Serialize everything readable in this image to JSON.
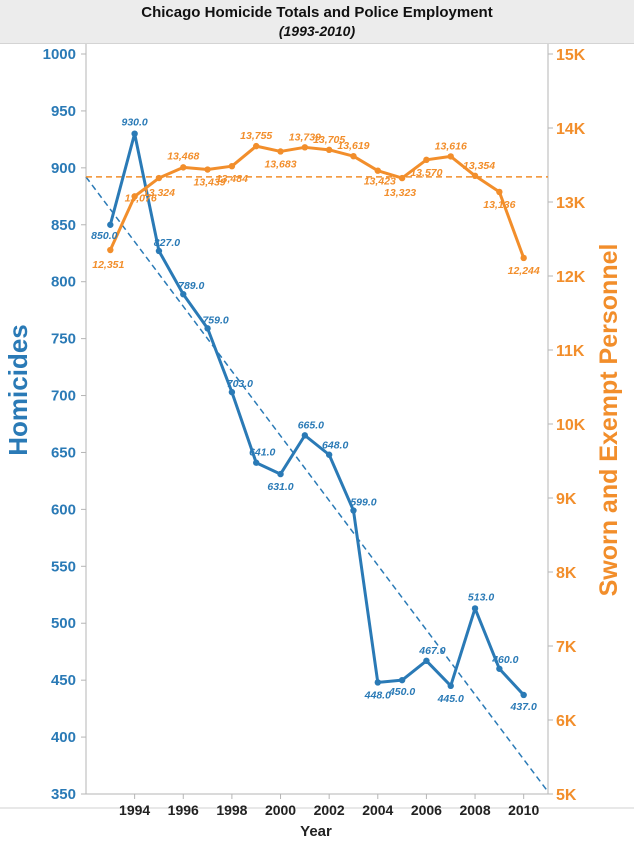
{
  "chart_data": {
    "type": "line",
    "title": "Chicago Homicide Totals and Police Employment",
    "subtitle": "(1993-2010)",
    "xlabel": "Year",
    "ylabel_left": "Homicides",
    "ylabel_right": "Sworn and Exempt Personnel",
    "x": [
      1993,
      1994,
      1995,
      1996,
      1997,
      1998,
      1999,
      2000,
      2001,
      2002,
      2003,
      2004,
      2005,
      2006,
      2007,
      2008,
      2009,
      2010
    ],
    "x_ticks": [
      1994,
      1996,
      1998,
      2000,
      2002,
      2004,
      2006,
      2008,
      2010
    ],
    "ylim_left": [
      350,
      1000
    ],
    "yticks_left": [
      350,
      400,
      450,
      500,
      550,
      600,
      650,
      700,
      750,
      800,
      850,
      900,
      950,
      1000
    ],
    "ylim_right": [
      5000,
      15000
    ],
    "yticks_right": [
      {
        "v": 5000,
        "label": "5K"
      },
      {
        "v": 6000,
        "label": "6K"
      },
      {
        "v": 7000,
        "label": "7K"
      },
      {
        "v": 8000,
        "label": "8K"
      },
      {
        "v": 9000,
        "label": "9K"
      },
      {
        "v": 10000,
        "label": "10K"
      },
      {
        "v": 11000,
        "label": "11K"
      },
      {
        "v": 12000,
        "label": "12K"
      },
      {
        "v": 13000,
        "label": "13K"
      },
      {
        "v": 14000,
        "label": "14K"
      },
      {
        "v": 15000,
        "label": "15K"
      }
    ],
    "series": [
      {
        "axis": "left",
        "color": "#2a7ab6",
        "values": [
          850.0,
          930.0,
          827.0,
          789.0,
          759.0,
          703.0,
          641.0,
          631.0,
          665.0,
          648.0,
          599.0,
          448.0,
          450.0,
          467.0,
          445.0,
          513.0,
          460.0,
          437.0
        ],
        "labels": [
          "850.0",
          "930.0",
          "827.0",
          "789.0",
          "759.0",
          "703.0",
          "641.0",
          "631.0",
          "665.0",
          "648.0",
          "599.0",
          "448.0",
          "450.0",
          "467.0",
          "445.0",
          "513.0",
          "460.0",
          "437.0"
        ],
        "trend": [
          892,
          352
        ]
      },
      {
        "axis": "right",
        "color": "#f28e2b",
        "values": [
          12351,
          13076,
          13324,
          13468,
          13439,
          13484,
          13755,
          13683,
          13739,
          13705,
          13619,
          13423,
          13323,
          13570,
          13616,
          13354,
          13136,
          12244
        ],
        "labels": [
          "12,351",
          "13,076",
          "13,324",
          "13,468",
          "13,439",
          "13,484",
          "13,755",
          "13,683",
          "13,739",
          "13,705",
          "13,619",
          "13,423",
          "13,323",
          "13,570",
          "13,616",
          "13,354",
          "13,136",
          "12,244"
        ],
        "trend": [
          13340,
          13340
        ]
      }
    ],
    "grid": false
  }
}
